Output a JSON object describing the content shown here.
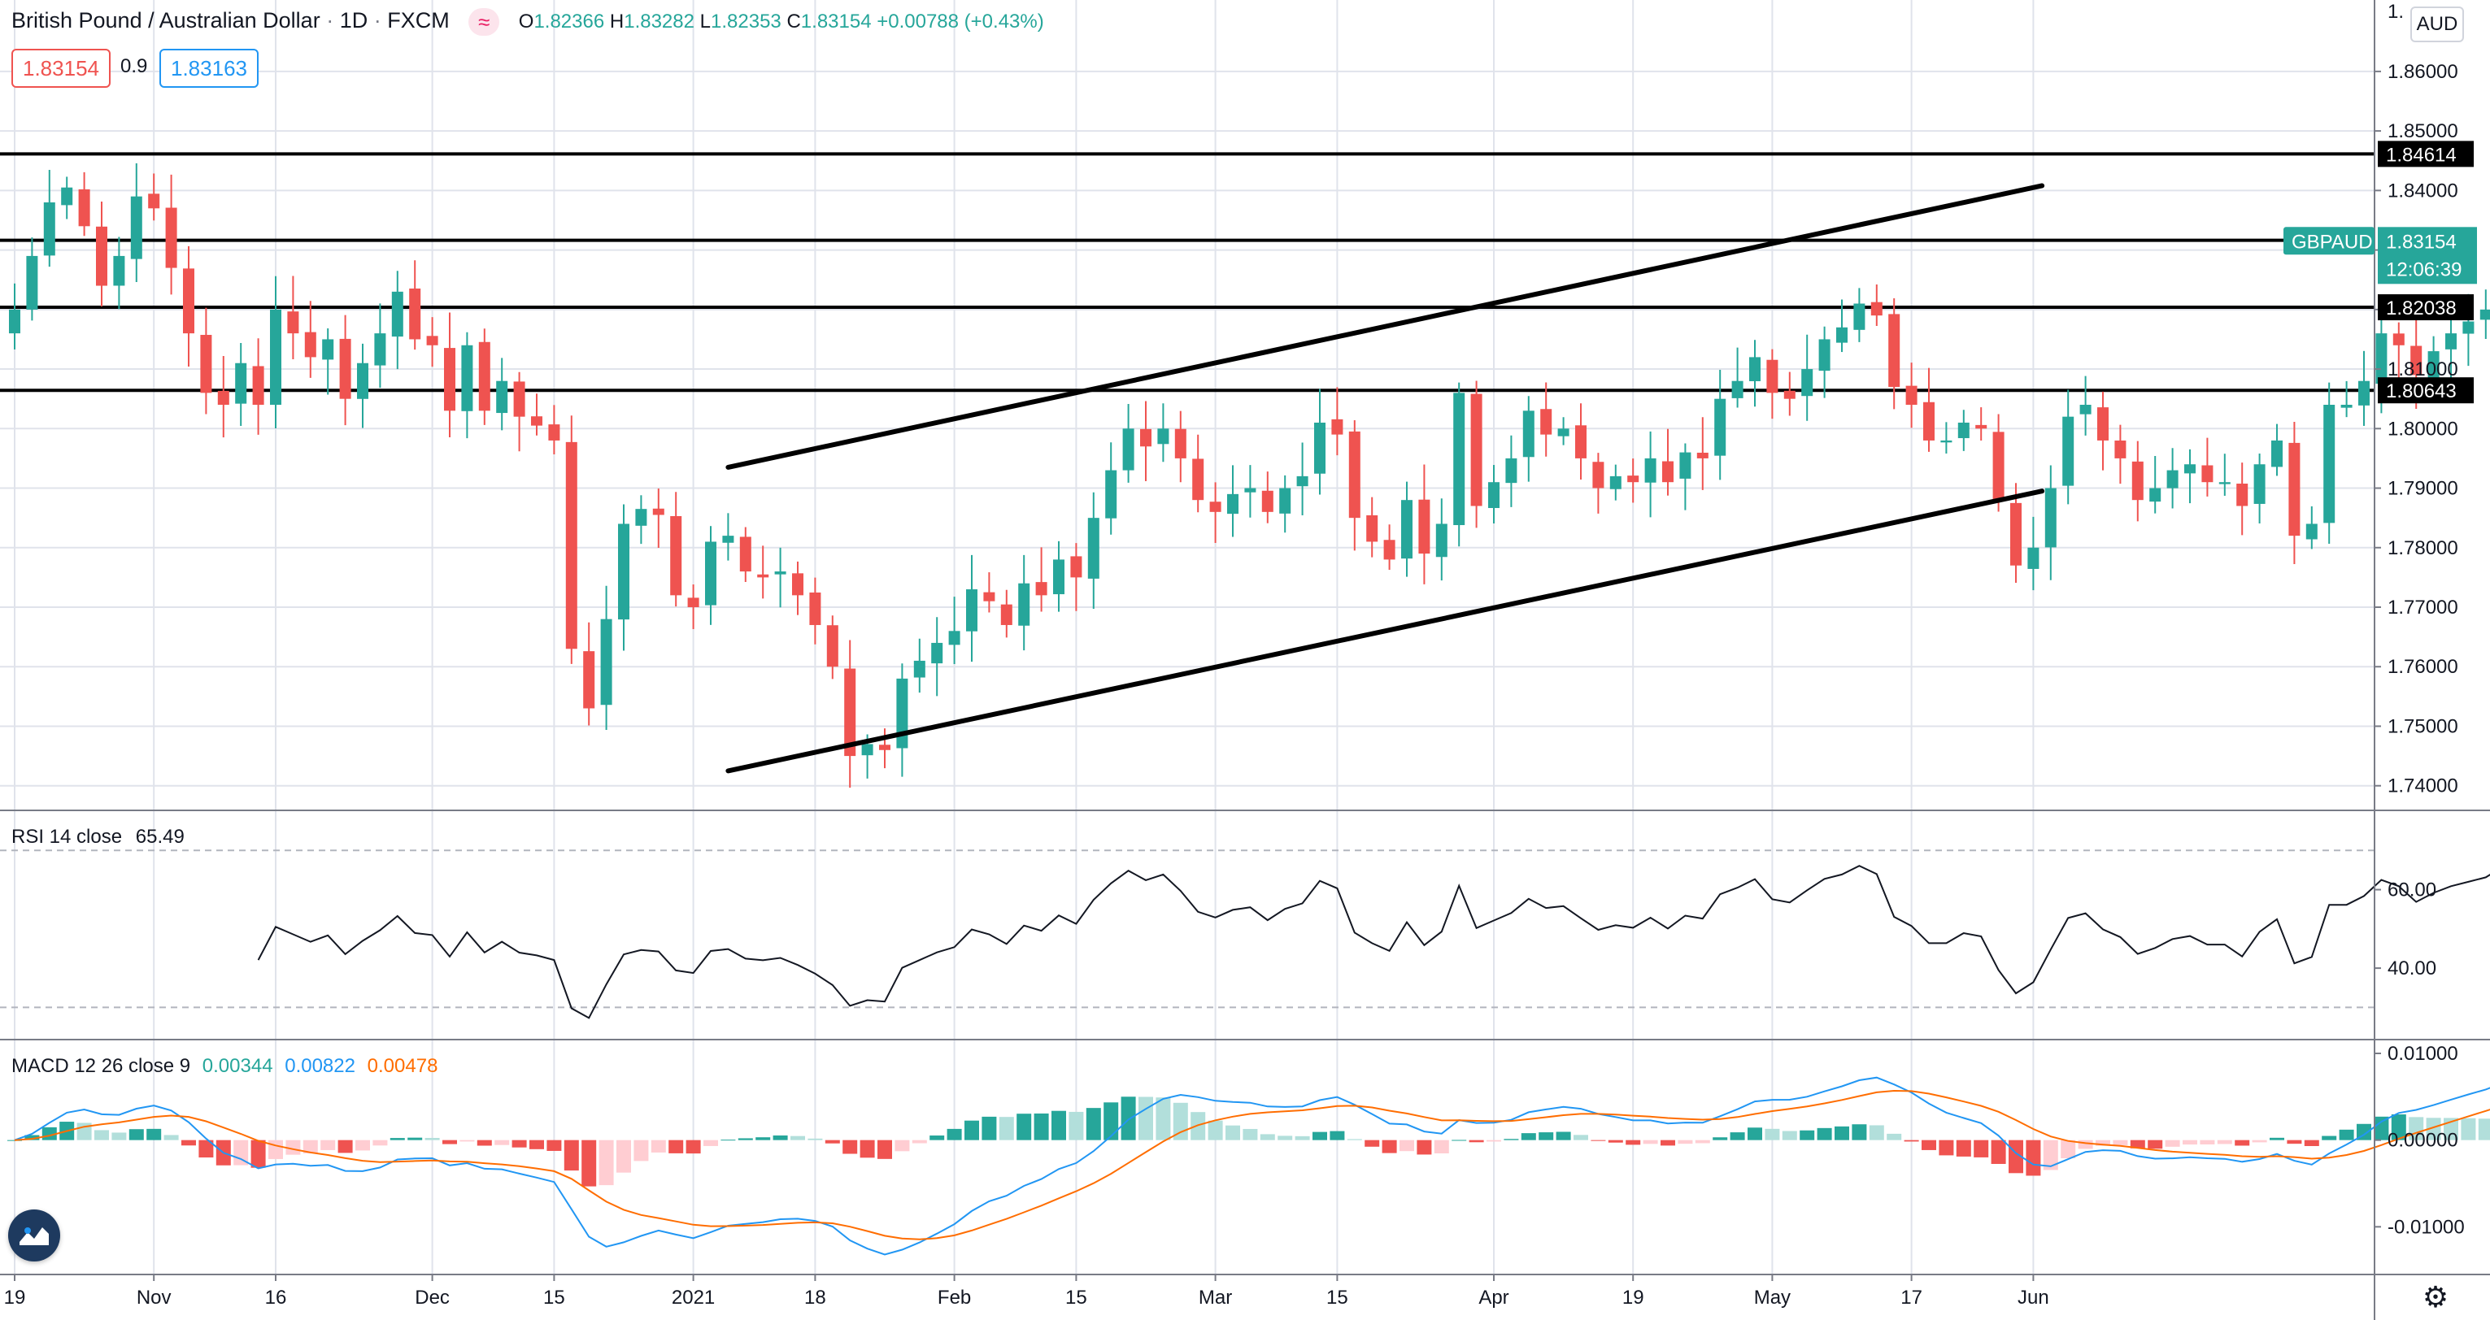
{
  "header": {
    "title": "British Pound / Australian Dollar",
    "interval": "1D",
    "exchange": "FXCM",
    "ohlc": {
      "o_label": "O",
      "o": "1.82366",
      "h_label": "H",
      "h": "1.83282",
      "l_label": "L",
      "l": "1.82353",
      "c_label": "C",
      "c": "1.83154",
      "change": "+0.00788 (+0.43%)"
    },
    "bid": "1.83154",
    "spread": "0.9",
    "ask": "1.83163",
    "currency": "AUD"
  },
  "colors": {
    "up": "#26a69a",
    "up_hist_dim": "#b2dfdb",
    "down": "#ef5350",
    "down_hist_dim": "#ffcdd2",
    "macd_line": "#2196f3",
    "signal_line": "#ff6d00",
    "rsi_line": "#131722",
    "grid": "#e0e3eb",
    "level": "#000000",
    "trend": "#000000"
  },
  "chart_data": [
    {
      "type": "candlestick",
      "symbol": "GBPAUD",
      "ylim": [
        1.736,
        1.872
      ],
      "y_ticks": [
        "1.74000",
        "1.75000",
        "1.76000",
        "1.77000",
        "1.78000",
        "1.79000",
        "1.80000",
        "1.81000",
        "1.82000",
        "1.83000",
        "1.84000",
        "1.85000",
        "1.86000"
      ],
      "top_tick_partial": "1.",
      "x_ticks": [
        "19",
        "Nov",
        "16",
        "Dec",
        "15",
        "2021",
        "18",
        "Feb",
        "15",
        "Mar",
        "15",
        "Apr",
        "19",
        "May",
        "17",
        "Jun"
      ],
      "x_tick_pos": [
        0,
        8,
        15,
        24,
        31,
        39,
        46,
        54,
        61,
        69,
        76,
        85,
        93,
        101,
        109,
        116
      ],
      "horizontal_levels": [
        {
          "label": "1.84614",
          "value": 1.84614
        },
        {
          "label": "1.83164",
          "value": 1.83164
        },
        {
          "label": "1.82038",
          "value": 1.82038
        },
        {
          "label": "1.80643",
          "value": 1.80643
        }
      ],
      "last_price": {
        "symbol_tag": "GBPAUD",
        "price": "1.83154",
        "countdown": "12:06:39"
      },
      "trend_lines": [
        {
          "from": [
            41,
            1.7935
          ],
          "to": [
            116.5,
            1.8408
          ]
        },
        {
          "from": [
            41,
            1.7425
          ],
          "to": [
            116.5,
            1.7895
          ]
        }
      ],
      "closes": [
        1.82,
        1.829,
        1.838,
        1.8405,
        1.834,
        1.824,
        1.829,
        1.839,
        1.837,
        1.827,
        1.816,
        1.806,
        1.804,
        1.811,
        1.804,
        1.82,
        1.816,
        1.812,
        1.815,
        1.805,
        1.811,
        1.816,
        1.823,
        1.815,
        1.814,
        1.803,
        1.814,
        1.803,
        1.808,
        1.802,
        1.8005,
        1.798,
        1.763,
        1.753,
        1.768,
        1.784,
        1.7865,
        1.7855,
        1.772,
        1.77,
        1.781,
        1.782,
        1.776,
        1.775,
        1.776,
        1.772,
        1.767,
        1.76,
        1.745,
        1.747,
        1.746,
        1.758,
        1.761,
        1.764,
        1.766,
        1.773,
        1.771,
        1.767,
        1.774,
        1.772,
        1.778,
        1.775,
        1.785,
        1.793,
        1.8,
        1.797,
        1.8,
        1.795,
        1.788,
        1.786,
        1.789,
        1.79,
        1.786,
        1.79,
        1.792,
        1.801,
        1.799,
        1.785,
        1.781,
        1.778,
        1.788,
        1.779,
        1.784,
        1.806,
        1.787,
        1.791,
        1.795,
        1.803,
        1.799,
        1.8,
        1.795,
        1.79,
        1.792,
        1.791,
        1.795,
        1.791,
        1.796,
        1.795,
        1.805,
        1.808,
        1.812,
        1.806,
        1.805,
        1.81,
        1.815,
        1.817,
        1.821,
        1.819,
        1.807,
        1.804,
        1.798,
        1.798,
        1.801,
        1.8,
        1.788,
        1.777,
        1.78,
        1.79,
        1.802,
        1.804,
        1.798,
        1.795,
        1.788,
        1.79,
        1.793,
        1.794,
        1.791,
        1.791,
        1.787,
        1.794,
        1.798,
        1.782,
        1.784,
        1.804,
        1.804,
        1.808,
        1.816,
        1.814,
        1.809,
        1.813,
        1.816,
        1.818,
        1.82,
        1.825,
        1.8237,
        1.8315
      ]
    },
    {
      "type": "line",
      "title": "RSI 14 close",
      "value": "65.49",
      "ylim": [
        22,
        80
      ],
      "y_ticks": [
        "40.00",
        "60.00"
      ],
      "bands": [
        30,
        70
      ]
    },
    {
      "type": "bar+line",
      "title": "MACD 12 26 close 9",
      "values": {
        "histogram": "0.00344",
        "macd": "0.00822",
        "signal": "0.00478"
      },
      "ylim": [
        -0.0155,
        0.0115
      ],
      "y_ticks": [
        "0.01000",
        "0.00000",
        "-0.01000"
      ]
    }
  ]
}
